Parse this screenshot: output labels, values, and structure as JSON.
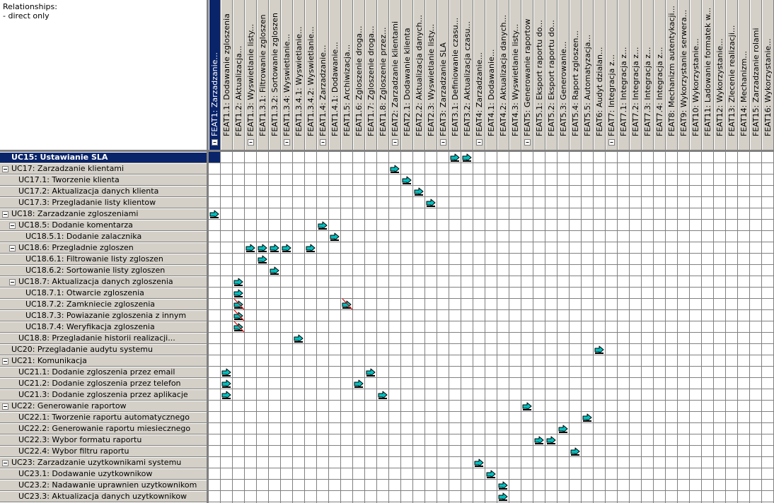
{
  "panel": {
    "title": "Relationships:",
    "subtitle": "- direct only"
  },
  "colors": {
    "header_bg": "#d4d0c8",
    "selected_bg": "#0a246a",
    "grid_line": "#808080",
    "link_icon": "#00c0c0"
  },
  "columns": [
    {
      "label": "FEAT1: Zarzadzanie...",
      "collapse": true,
      "selected": true
    },
    {
      "label": "FEAT1.1: Dodawanie zgloszenia"
    },
    {
      "label": "FEAT1.2: Aktualizacja..."
    },
    {
      "label": "FEAT1.3: Wyswietlanie listy...",
      "collapse": true
    },
    {
      "label": "FEAT1.3.1: Filtrowanie zgloszen"
    },
    {
      "label": "FEAT1.3.2: Sortowanie zgloszen"
    },
    {
      "label": "FEAT1.3.4: Wyswietlanie...",
      "collapse": true
    },
    {
      "label": "FEAT1.3.4.1: Wyswietlanie..."
    },
    {
      "label": "FEAT1.3.4.2: Wyswietlanie..."
    },
    {
      "label": "FEAT1.4: Zarzadzanie...",
      "collapse": true
    },
    {
      "label": "FEAT1.4.1: Dodawanie..."
    },
    {
      "label": "FEAT1.5: Archiwizacja..."
    },
    {
      "label": "FEAT1.6: Zgloszenie droga..."
    },
    {
      "label": "FEAT1.7: Zgloszenie droga..."
    },
    {
      "label": "FEAT1.8: Zgloszenie przez..."
    },
    {
      "label": "FEAT2: Zarzadzanie klientami",
      "collapse": true
    },
    {
      "label": "FEAT2.1: Dodawanie klienta"
    },
    {
      "label": "FEAT2.2: Aktualizacja danych..."
    },
    {
      "label": "FEAT2.3: Wyswietlanie listy..."
    },
    {
      "label": "FEAT3: Zarzadzanie SLA",
      "collapse": true
    },
    {
      "label": "FEAT3.1: Definiowanie czasu..."
    },
    {
      "label": "FEAT3.2: Aktualizacja czasu..."
    },
    {
      "label": "FEAT4: Zarzadzanie...",
      "collapse": true
    },
    {
      "label": "FEAT4.1: Dodawanie..."
    },
    {
      "label": "FEAT4.2: Aktualizacja danych..."
    },
    {
      "label": "FEAT4.3: Wyswietlanie listy..."
    },
    {
      "label": "FEAT5: Generowanie raportow",
      "collapse": true
    },
    {
      "label": "FEAT5.1: Eksport raportu do..."
    },
    {
      "label": "FEAT5.2: Eksport raportu do..."
    },
    {
      "label": "FEAT5.3: Generowanie..."
    },
    {
      "label": "FEAT5.4: Raport zgloszen..."
    },
    {
      "label": "FEAT5.5: Automatyzacja..."
    },
    {
      "label": "FEAT6: Audyt dzialan..."
    },
    {
      "label": "FEAT7: Integracja z...",
      "collapse": true
    },
    {
      "label": "FEAT7.1: Integracja z..."
    },
    {
      "label": "FEAT7.2: Integracja z..."
    },
    {
      "label": "FEAT7.3: Integracja z..."
    },
    {
      "label": "FEAT7.4: Integracja z..."
    },
    {
      "label": "FEAT8: Mechanizm autentykacji..."
    },
    {
      "label": "FEAT9: Wykorzystanie serwera..."
    },
    {
      "label": "FEAT10: Wykorzystanie..."
    },
    {
      "label": "FEAT11: Ladowanie formatek w..."
    },
    {
      "label": "FEAT12: Wykorzystanie..."
    },
    {
      "label": "FEAT13: Zlecenie realizacji..."
    },
    {
      "label": "FEAT14: Mechanizm..."
    },
    {
      "label": "FEAT15: Zarzadzanie rolami"
    },
    {
      "label": "FEAT16: Wykorzystanie..."
    }
  ],
  "rows": [
    {
      "label": "UC15: Ustawianie SLA",
      "level": 0,
      "selected": true
    },
    {
      "label": "UC17: Zarzadzanie klientami",
      "level": 0,
      "toggle": true
    },
    {
      "label": "UC17.1: Tworzenie klienta",
      "level": 1
    },
    {
      "label": "UC17.2: Aktualizacja danych klienta",
      "level": 1
    },
    {
      "label": "UC17.3: Przegladanie listy klientow",
      "level": 1
    },
    {
      "label": "UC18: Zarzadzanie zgloszeniami",
      "level": 0,
      "toggle": true
    },
    {
      "label": "UC18.5: Dodanie komentarza",
      "level": 1,
      "toggle": true
    },
    {
      "label": "UC18.5.1: Dodanie zalacznika",
      "level": 2
    },
    {
      "label": "UC18.6: Przegladnie zgloszen",
      "level": 1,
      "toggle": true
    },
    {
      "label": "UC18.6.1: Filtrowanie listy zgloszen",
      "level": 2
    },
    {
      "label": "UC18.6.2: Sortowanie listy zgloszen",
      "level": 2
    },
    {
      "label": "UC18.7: Aktualizacja danych zgloszenia",
      "level": 1,
      "toggle": true
    },
    {
      "label": "UC18.7.1: Otwarcie zgloszenia",
      "level": 2
    },
    {
      "label": "UC18.7.2: Zamkniecie zgloszenia",
      "level": 2
    },
    {
      "label": "UC18.7.3: Powiazanie zgloszenia z innym",
      "level": 2
    },
    {
      "label": "UC18.7.4: Weryfikacja zgloszenia",
      "level": 2
    },
    {
      "label": "UC18.8: Przegladanie historii realizacji...",
      "level": 1
    },
    {
      "label": "UC20: Przegladanie audytu systemu",
      "level": 0
    },
    {
      "label": "UC21: Komunikacja",
      "level": 0,
      "toggle": true
    },
    {
      "label": "UC21.1: Dodanie zgloszenia przez email",
      "level": 1
    },
    {
      "label": "UC21.2: Dodanie zgloszenia przez telefon",
      "level": 1
    },
    {
      "label": "UC21.3: Dodanie zgloszenia przez aplikacje",
      "level": 1
    },
    {
      "label": "UC22: Generowanie raportow",
      "level": 0,
      "toggle": true
    },
    {
      "label": "UC22.1: Tworzenie raportu automatycznego",
      "level": 1
    },
    {
      "label": "UC22.2: Generowanie raportu miesiecznego",
      "level": 1
    },
    {
      "label": "UC22.3: Wybor formatu raportu",
      "level": 1
    },
    {
      "label": "UC22.4: Wybor filtru raportu",
      "level": 1
    },
    {
      "label": "UC23: Zarzadzanie uzytkownikami systemu",
      "level": 0,
      "toggle": true
    },
    {
      "label": "UC23.1: Dodawanie uzytkownikow",
      "level": 1
    },
    {
      "label": "UC23.2: Nadawanie uprawnien uzytkownikom",
      "level": 1
    },
    {
      "label": "UC23.3: Aktualizacja danych uzytkownikow",
      "level": 1
    }
  ],
  "links": [
    {
      "row": 0,
      "col": 20
    },
    {
      "row": 0,
      "col": 21
    },
    {
      "row": 1,
      "col": 15
    },
    {
      "row": 2,
      "col": 16
    },
    {
      "row": 3,
      "col": 17
    },
    {
      "row": 4,
      "col": 18
    },
    {
      "row": 5,
      "col": 0
    },
    {
      "row": 6,
      "col": 9
    },
    {
      "row": 7,
      "col": 10
    },
    {
      "row": 8,
      "col": 3
    },
    {
      "row": 8,
      "col": 4
    },
    {
      "row": 8,
      "col": 5
    },
    {
      "row": 8,
      "col": 6
    },
    {
      "row": 8,
      "col": 8
    },
    {
      "row": 9,
      "col": 4
    },
    {
      "row": 10,
      "col": 5
    },
    {
      "row": 11,
      "col": 2
    },
    {
      "row": 12,
      "col": 2
    },
    {
      "row": 13,
      "col": 2,
      "suspect": true
    },
    {
      "row": 13,
      "col": 11,
      "suspect": true
    },
    {
      "row": 14,
      "col": 2,
      "suspect": true
    },
    {
      "row": 15,
      "col": 2,
      "suspect": true
    },
    {
      "row": 16,
      "col": 7
    },
    {
      "row": 17,
      "col": 32
    },
    {
      "row": 19,
      "col": 1
    },
    {
      "row": 19,
      "col": 13
    },
    {
      "row": 20,
      "col": 1
    },
    {
      "row": 20,
      "col": 12
    },
    {
      "row": 21,
      "col": 1
    },
    {
      "row": 21,
      "col": 14
    },
    {
      "row": 22,
      "col": 26
    },
    {
      "row": 23,
      "col": 31
    },
    {
      "row": 24,
      "col": 29
    },
    {
      "row": 25,
      "col": 27
    },
    {
      "row": 25,
      "col": 28
    },
    {
      "row": 26,
      "col": 30
    },
    {
      "row": 27,
      "col": 22
    },
    {
      "row": 28,
      "col": 23
    },
    {
      "row": 29,
      "col": 24
    },
    {
      "row": 30,
      "col": 24
    }
  ]
}
